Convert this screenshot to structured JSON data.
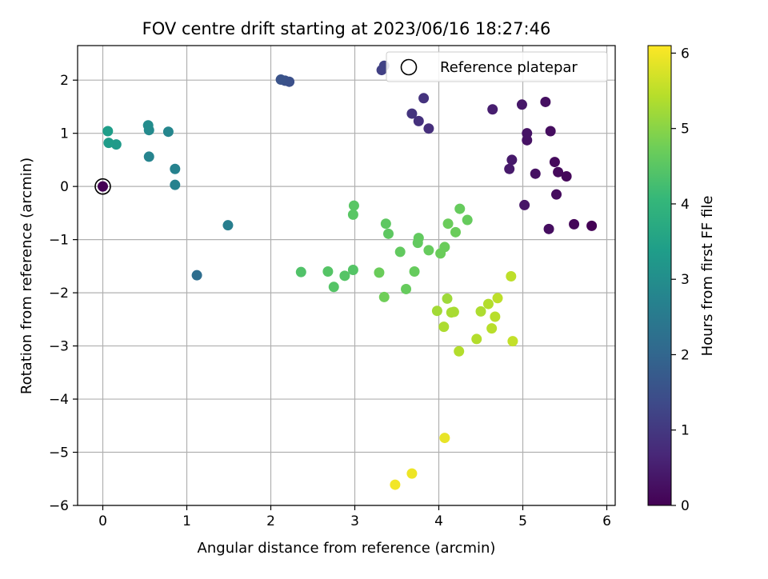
{
  "chart_data": {
    "type": "scatter",
    "title": "FOV centre drift starting at 2023/06/16 18:27:46",
    "xlabel": "Angular distance from reference (arcmin)",
    "ylabel": "Rotation from reference (arcmin)",
    "xlim": [
      -0.3,
      6.1
    ],
    "ylim": [
      -6,
      2.65
    ],
    "xticks": [
      0,
      1,
      2,
      3,
      4,
      5,
      6
    ],
    "yticks": [
      -6,
      -5,
      -4,
      -3,
      -2,
      -1,
      0,
      1,
      2
    ],
    "grid": true,
    "legend": {
      "position": "top-right",
      "entries": [
        "Reference platepar"
      ]
    },
    "reference_point": {
      "x": 0,
      "y": 0
    },
    "colorbar": {
      "label": "Hours from first FF file",
      "range": [
        0,
        6.1
      ],
      "ticks": [
        0,
        1,
        2,
        3,
        4,
        5,
        6
      ],
      "colormap": "viridis"
    },
    "points": [
      {
        "x": 5.82,
        "y": -0.74,
        "t": 0.02
      },
      {
        "x": 5.61,
        "y": -0.71,
        "t": 0.1
      },
      {
        "x": 5.52,
        "y": 0.19,
        "t": 0.12
      },
      {
        "x": 5.42,
        "y": 0.27,
        "t": 0.14
      },
      {
        "x": 5.38,
        "y": 0.46,
        "t": 0.16
      },
      {
        "x": 5.4,
        "y": -0.15,
        "t": 0.18
      },
      {
        "x": 5.33,
        "y": 1.04,
        "t": 0.2
      },
      {
        "x": 5.31,
        "y": -0.8,
        "t": 0.22
      },
      {
        "x": 5.27,
        "y": 1.59,
        "t": 0.24
      },
      {
        "x": 5.15,
        "y": 0.24,
        "t": 0.28
      },
      {
        "x": 5.05,
        "y": 0.87,
        "t": 0.3
      },
      {
        "x": 5.05,
        "y": 1.0,
        "t": 0.32
      },
      {
        "x": 5.02,
        "y": -0.35,
        "t": 0.36
      },
      {
        "x": 4.99,
        "y": 1.54,
        "t": 0.38
      },
      {
        "x": 4.87,
        "y": 0.5,
        "t": 0.42
      },
      {
        "x": 4.84,
        "y": 0.33,
        "t": 0.44
      },
      {
        "x": 4.64,
        "y": 1.45,
        "t": 0.5
      },
      {
        "x": 3.88,
        "y": 1.09,
        "t": 0.82
      },
      {
        "x": 3.76,
        "y": 1.23,
        "t": 0.86
      },
      {
        "x": 3.82,
        "y": 1.66,
        "t": 0.9
      },
      {
        "x": 3.68,
        "y": 1.37,
        "t": 0.92
      },
      {
        "x": 3.32,
        "y": 2.19,
        "t": 1.15
      },
      {
        "x": 3.35,
        "y": 2.27,
        "t": 1.2
      },
      {
        "x": 2.22,
        "y": 1.97,
        "t": 1.5
      },
      {
        "x": 2.17,
        "y": 1.99,
        "t": 1.52
      },
      {
        "x": 2.12,
        "y": 2.01,
        "t": 1.55
      },
      {
        "x": 1.12,
        "y": -1.67,
        "t": 2.2
      },
      {
        "x": 1.49,
        "y": -0.73,
        "t": 2.6
      },
      {
        "x": 0.86,
        "y": 0.03,
        "t": 2.7
      },
      {
        "x": 0.86,
        "y": 0.33,
        "t": 2.72
      },
      {
        "x": 0.55,
        "y": 0.56,
        "t": 2.75
      },
      {
        "x": 0.78,
        "y": 1.03,
        "t": 2.8
      },
      {
        "x": 0.55,
        "y": 1.06,
        "t": 2.9
      },
      {
        "x": 0.54,
        "y": 1.15,
        "t": 2.95
      },
      {
        "x": 0.16,
        "y": 0.79,
        "t": 3.3
      },
      {
        "x": 0.07,
        "y": 0.82,
        "t": 3.35
      },
      {
        "x": 0.06,
        "y": 1.04,
        "t": 3.4
      },
      {
        "x": 0.0,
        "y": 0.0,
        "t": 0.0
      },
      {
        "x": 2.99,
        "y": -0.36,
        "t": 4.5
      },
      {
        "x": 2.98,
        "y": -0.53,
        "t": 4.5
      },
      {
        "x": 3.37,
        "y": -0.7,
        "t": 4.55
      },
      {
        "x": 3.4,
        "y": -0.89,
        "t": 4.55
      },
      {
        "x": 3.76,
        "y": -0.97,
        "t": 4.6
      },
      {
        "x": 3.75,
        "y": -1.06,
        "t": 4.6
      },
      {
        "x": 4.25,
        "y": -0.42,
        "t": 4.65
      },
      {
        "x": 4.34,
        "y": -0.63,
        "t": 4.65
      },
      {
        "x": 4.11,
        "y": -0.7,
        "t": 4.7
      },
      {
        "x": 4.2,
        "y": -0.86,
        "t": 4.7
      },
      {
        "x": 4.07,
        "y": -1.14,
        "t": 4.7
      },
      {
        "x": 3.88,
        "y": -1.2,
        "t": 4.65
      },
      {
        "x": 4.02,
        "y": -1.26,
        "t": 4.7
      },
      {
        "x": 3.54,
        "y": -1.23,
        "t": 4.6
      },
      {
        "x": 3.71,
        "y": -1.6,
        "t": 4.65
      },
      {
        "x": 3.61,
        "y": -1.93,
        "t": 4.65
      },
      {
        "x": 3.29,
        "y": -1.62,
        "t": 4.7
      },
      {
        "x": 3.35,
        "y": -2.08,
        "t": 4.75
      },
      {
        "x": 2.98,
        "y": -1.57,
        "t": 4.45
      },
      {
        "x": 2.88,
        "y": -1.68,
        "t": 4.45
      },
      {
        "x": 2.75,
        "y": -1.89,
        "t": 4.45
      },
      {
        "x": 2.68,
        "y": -1.6,
        "t": 4.45
      },
      {
        "x": 2.36,
        "y": -1.61,
        "t": 4.4
      },
      {
        "x": 4.1,
        "y": -2.11,
        "t": 5.2
      },
      {
        "x": 3.98,
        "y": -2.34,
        "t": 5.25
      },
      {
        "x": 4.15,
        "y": -2.37,
        "t": 5.3
      },
      {
        "x": 4.18,
        "y": -2.36,
        "t": 5.3
      },
      {
        "x": 4.06,
        "y": -2.64,
        "t": 5.35
      },
      {
        "x": 4.24,
        "y": -3.1,
        "t": 5.4
      },
      {
        "x": 4.45,
        "y": -2.87,
        "t": 5.4
      },
      {
        "x": 4.5,
        "y": -2.35,
        "t": 5.35
      },
      {
        "x": 4.59,
        "y": -2.21,
        "t": 5.4
      },
      {
        "x": 4.63,
        "y": -2.67,
        "t": 5.45
      },
      {
        "x": 4.67,
        "y": -2.45,
        "t": 5.45
      },
      {
        "x": 4.7,
        "y": -2.1,
        "t": 5.5
      },
      {
        "x": 4.86,
        "y": -1.69,
        "t": 5.5
      },
      {
        "x": 4.88,
        "y": -2.91,
        "t": 5.55
      },
      {
        "x": 4.07,
        "y": -4.73,
        "t": 5.9
      },
      {
        "x": 3.68,
        "y": -5.4,
        "t": 5.95
      },
      {
        "x": 3.48,
        "y": -5.61,
        "t": 6.0
      }
    ]
  }
}
